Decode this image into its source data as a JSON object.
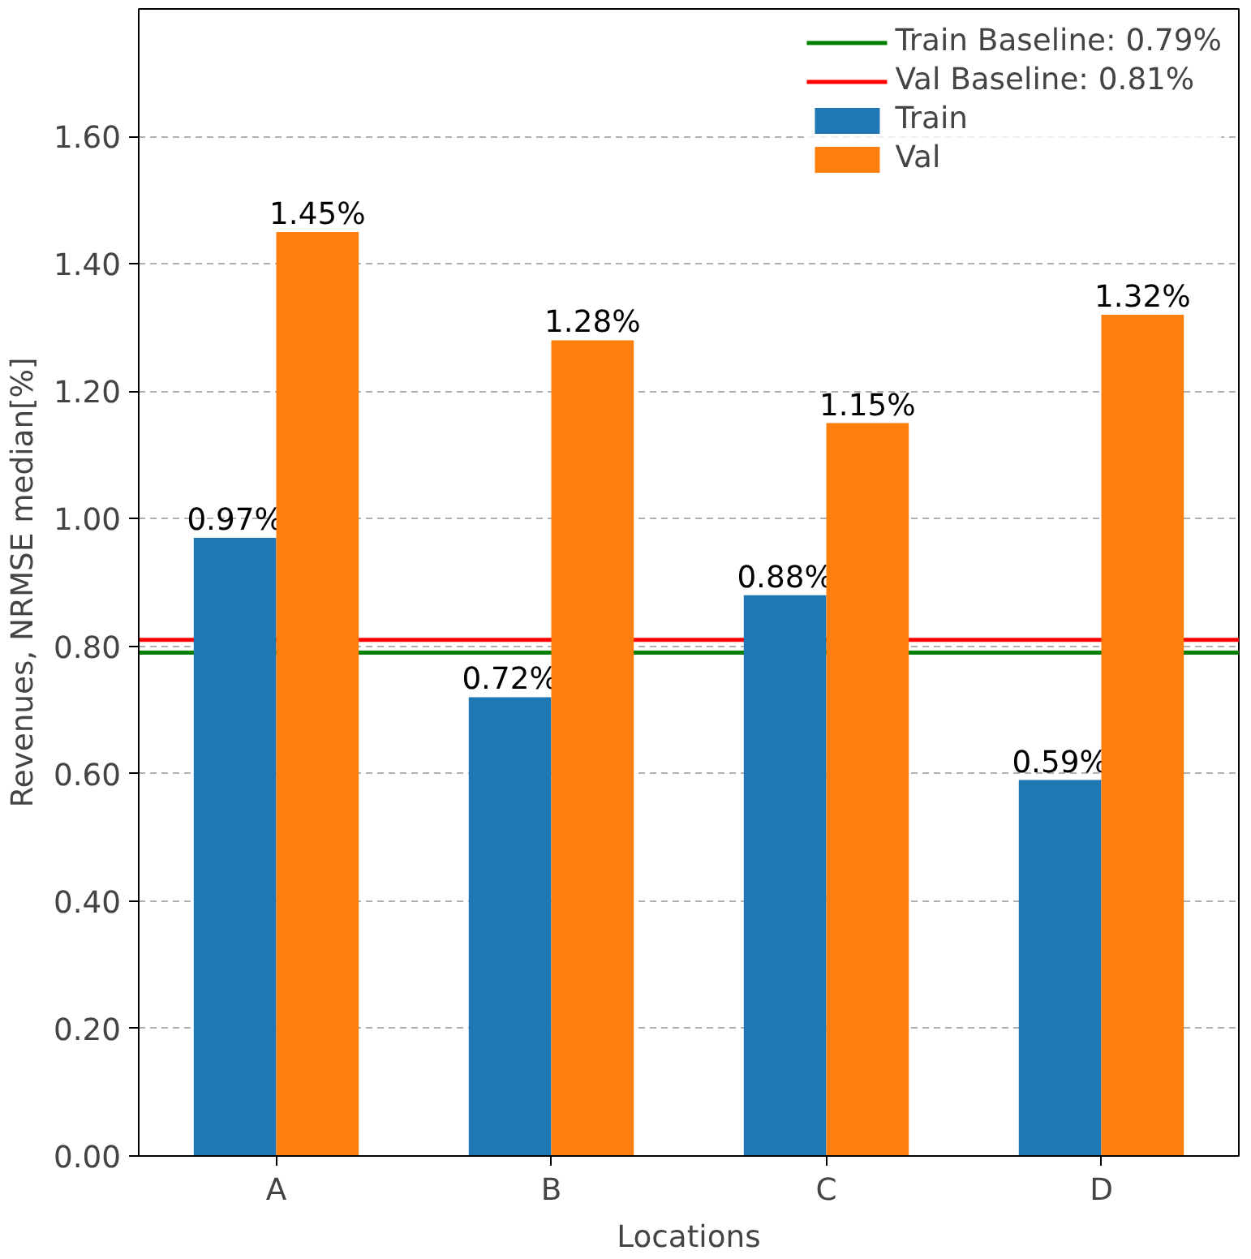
{
  "chart_data": {
    "type": "bar",
    "xlabel": "Locations",
    "ylabel": "Revenues, NRMSE median[%]",
    "categories": [
      "A",
      "B",
      "C",
      "D"
    ],
    "series": [
      {
        "name": "Train",
        "color": "#1f77b4",
        "values": [
          0.97,
          0.72,
          0.88,
          0.59
        ],
        "value_labels": [
          "0.97%",
          "0.72%",
          "0.88%",
          "0.59%"
        ]
      },
      {
        "name": "Val",
        "color": "#ff7f0e",
        "values": [
          1.45,
          1.28,
          1.15,
          1.32
        ],
        "value_labels": [
          "1.45%",
          "1.28%",
          "1.15%",
          "1.32%"
        ]
      }
    ],
    "ref_lines": [
      {
        "axis": "y",
        "value": 0.79,
        "label": "Train Baseline: 0.79%",
        "color": "#008000",
        "line_style": "solid"
      },
      {
        "axis": "y",
        "value": 0.81,
        "label": "Val Baseline: 0.81%",
        "color": "#ff0000",
        "line_style": "solid"
      }
    ],
    "ylim": [
      0,
      1.8
    ],
    "yticks": [
      {
        "value": 0,
        "label": "0.00"
      },
      {
        "value": 0.2,
        "label": "0.20"
      },
      {
        "value": 0.4,
        "label": "0.40"
      },
      {
        "value": 0.6,
        "label": "0.60"
      },
      {
        "value": 0.8,
        "label": "0.80"
      },
      {
        "value": 1.0,
        "label": "1.00"
      },
      {
        "value": 1.2,
        "label": "1.20"
      },
      {
        "value": 1.4,
        "label": "1.40"
      },
      {
        "value": 1.6,
        "label": "1.60"
      }
    ],
    "grid": "y",
    "legend": "top right"
  }
}
